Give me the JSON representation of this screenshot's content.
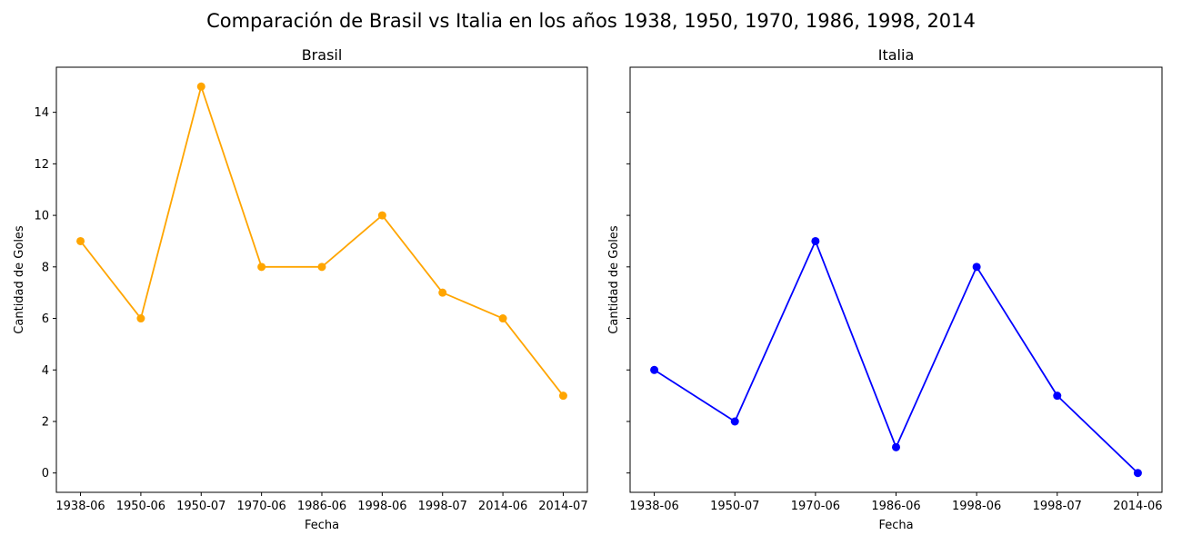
{
  "figure": {
    "suptitle": "Comparación de Brasil vs Italia en los años 1938, 1950, 1970, 1986, 1998, 2014"
  },
  "chart_data": [
    {
      "type": "line",
      "title": "Brasil",
      "xlabel": "Fecha",
      "ylabel": "Cantidad de Goles",
      "categories": [
        "1938-06",
        "1950-06",
        "1950-07",
        "1970-06",
        "1986-06",
        "1998-06",
        "1998-07",
        "2014-06",
        "2014-07"
      ],
      "series": [
        {
          "values": [
            9,
            6,
            15,
            8,
            8,
            10,
            7,
            6,
            3
          ],
          "color": "#ffa500",
          "marker": "circle"
        }
      ],
      "ylim": [
        -0.75,
        15.75
      ],
      "yticks": [
        0,
        2,
        4,
        6,
        8,
        10,
        12,
        14
      ],
      "show_ytick_labels": true,
      "grid": false,
      "legend": "none"
    },
    {
      "type": "line",
      "title": "Italia",
      "xlabel": "Fecha",
      "ylabel": "Cantidad de Goles",
      "categories": [
        "1938-06",
        "1950-07",
        "1970-06",
        "1986-06",
        "1998-06",
        "1998-07",
        "2014-06"
      ],
      "series": [
        {
          "values": [
            4,
            2,
            9,
            1,
            8,
            3,
            0
          ],
          "color": "#0000ff",
          "marker": "circle"
        }
      ],
      "ylim": [
        -0.75,
        15.75
      ],
      "yticks": [
        0,
        2,
        4,
        6,
        8,
        10,
        12,
        14
      ],
      "show_ytick_labels": false,
      "grid": false,
      "legend": "none"
    }
  ]
}
